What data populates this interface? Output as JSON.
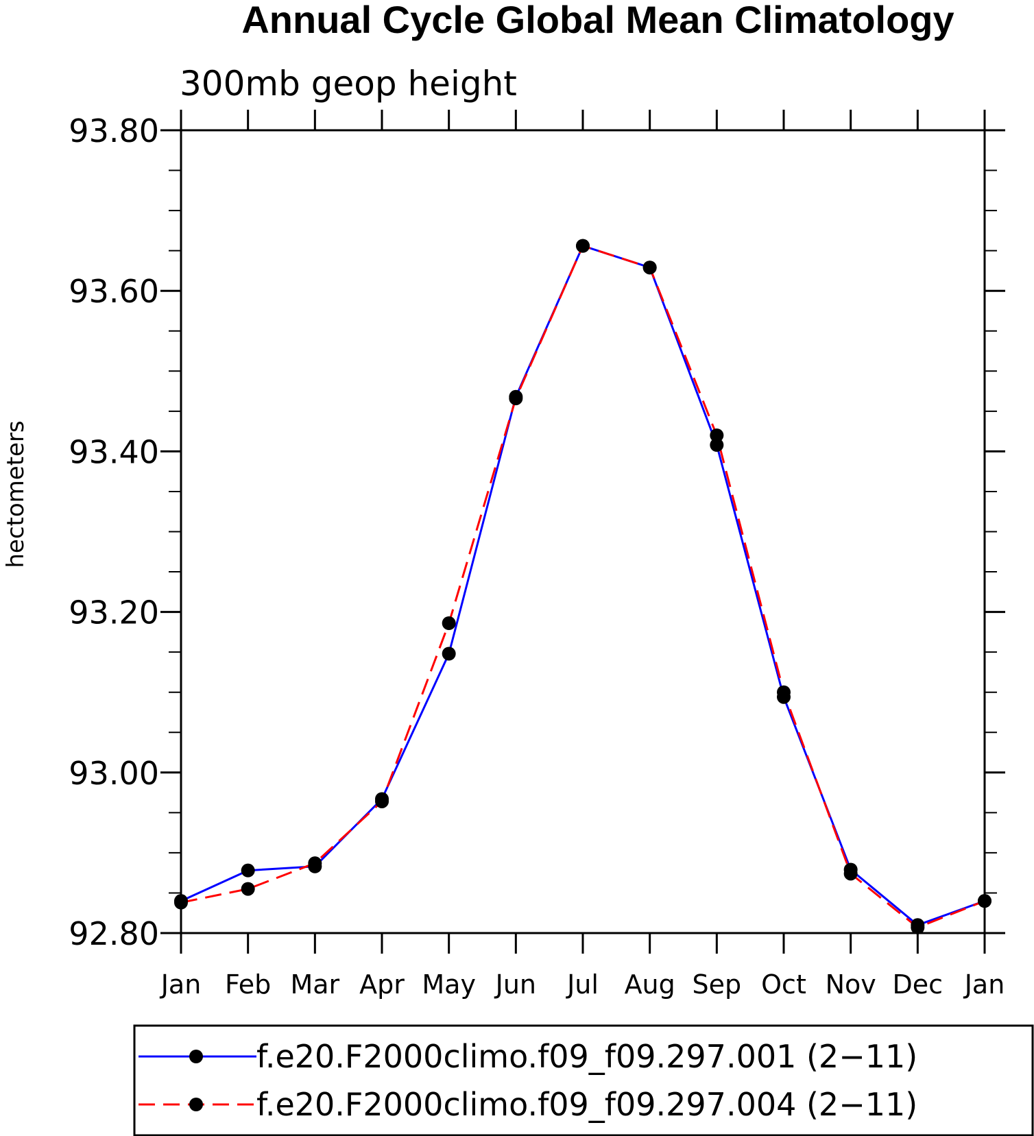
{
  "chart_data": {
    "type": "line",
    "title": "Annual Cycle Global Mean Climatology",
    "subtitle": "300mb geop height",
    "xlabel": "",
    "ylabel": "hectometers",
    "categories": [
      "Jan",
      "Feb",
      "Mar",
      "Apr",
      "May",
      "Jun",
      "Jul",
      "Aug",
      "Sep",
      "Oct",
      "Nov",
      "Dec",
      "Jan"
    ],
    "ylim": [
      92.8,
      93.8
    ],
    "yticks": [
      "93.80",
      "93.60",
      "93.40",
      "93.20",
      "93.00",
      "92.80"
    ],
    "grid": false,
    "legend_position": "bottom",
    "series": [
      {
        "name": "f.e20.F2000climo.f09_f09.297.001 (2−11)",
        "color": "#0000ff",
        "line_style": "solid",
        "marker": "filled-circle",
        "values": [
          92.84,
          92.878,
          92.883,
          92.967,
          93.148,
          93.468,
          93.656,
          93.629,
          93.408,
          93.094,
          92.879,
          92.81,
          92.84
        ]
      },
      {
        "name": "f.e20.F2000climo.f09_f09.297.004 (2−11)",
        "color": "#ff0000",
        "line_style": "dashed",
        "marker": "filled-circle",
        "values": [
          92.838,
          92.855,
          92.887,
          92.964,
          93.186,
          93.466,
          93.656,
          93.629,
          93.42,
          93.1,
          92.874,
          92.807,
          92.84
        ]
      }
    ]
  }
}
